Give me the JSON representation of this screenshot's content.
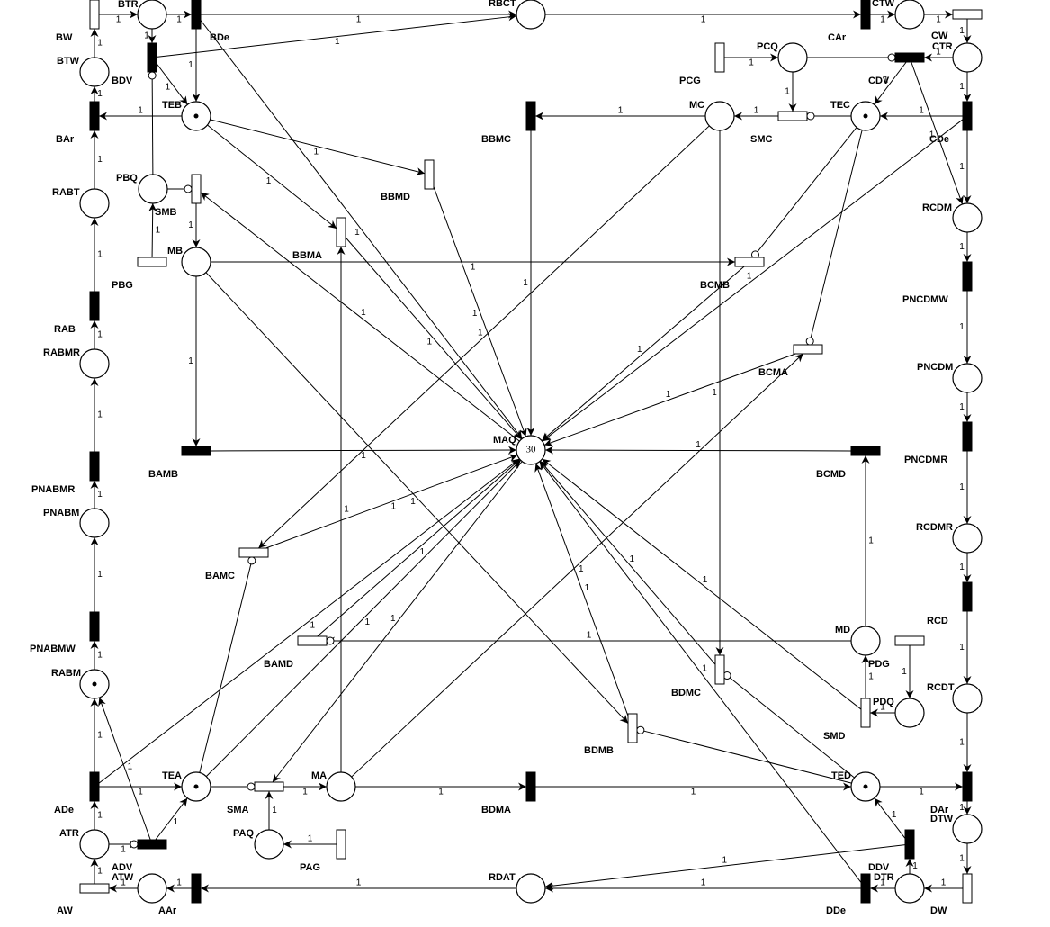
{
  "places": [
    {
      "label": "BTR"
    },
    {
      "label": "RBCT"
    },
    {
      "label": "CTW"
    },
    {
      "label": "BTW"
    },
    {
      "label": "PCQ"
    },
    {
      "label": "CTR"
    },
    {
      "label": "TEB",
      "tokens": 1
    },
    {
      "label": "MC"
    },
    {
      "label": "TEC",
      "tokens": 1
    },
    {
      "label": "RABT"
    },
    {
      "label": "PBQ"
    },
    {
      "label": "RCDM"
    },
    {
      "label": "MB"
    },
    {
      "label": "RABMR"
    },
    {
      "label": "PNCDM"
    },
    {
      "label": "MAQ",
      "tokens": 30
    },
    {
      "label": "PNABM"
    },
    {
      "label": "RCDMR"
    },
    {
      "label": "MD"
    },
    {
      "label": "RABM",
      "tokens": 1
    },
    {
      "label": "PDQ"
    },
    {
      "label": "RCDT"
    },
    {
      "label": "TEA",
      "tokens": 1
    },
    {
      "label": "MA"
    },
    {
      "label": "TED",
      "tokens": 1
    },
    {
      "label": "ATR"
    },
    {
      "label": "PAQ"
    },
    {
      "label": "DTW"
    },
    {
      "label": "ATW"
    },
    {
      "label": "RDAT"
    },
    {
      "label": "DTR"
    }
  ],
  "black_transitions": [
    {
      "label": "BDe"
    },
    {
      "label": "CAr"
    },
    {
      "label": "BDV"
    },
    {
      "label": "CDV"
    },
    {
      "label": "BAr"
    },
    {
      "label": "BBMC"
    },
    {
      "label": "CDe"
    },
    {
      "label": "RAB"
    },
    {
      "label": "PNCDMW"
    },
    {
      "label": "PNABMR"
    },
    {
      "label": "PNCDMR"
    },
    {
      "label": "BAMB"
    },
    {
      "label": "BCMD"
    },
    {
      "label": "RCD"
    },
    {
      "label": "PNABMW"
    },
    {
      "label": "ADe"
    },
    {
      "label": "BDMA"
    },
    {
      "label": "DAr"
    },
    {
      "label": "ADV"
    },
    {
      "label": "DDV"
    },
    {
      "label": "AAr"
    },
    {
      "label": "DDe"
    }
  ],
  "white_transitions": [
    {
      "label": "BW"
    },
    {
      "label": "CW"
    },
    {
      "label": "PCG"
    },
    {
      "label": "SMC"
    },
    {
      "label": "BBMD"
    },
    {
      "label": "SMB"
    },
    {
      "label": "BBMA"
    },
    {
      "label": "PBG"
    },
    {
      "label": "BCMB"
    },
    {
      "label": "BCMA"
    },
    {
      "label": "BAMC"
    },
    {
      "label": "BAMD"
    },
    {
      "label": "PDG"
    },
    {
      "label": "BDMC"
    },
    {
      "label": "SMD"
    },
    {
      "label": "BDMB"
    },
    {
      "label": "SMA"
    },
    {
      "label": "PAG"
    },
    {
      "label": "AW"
    },
    {
      "label": "DW"
    }
  ],
  "arc_weights": [
    1,
    1,
    1,
    1,
    1,
    1,
    1,
    1,
    1,
    1,
    1,
    1,
    1,
    1,
    1,
    1,
    1,
    1,
    1,
    1,
    1,
    1,
    1,
    1,
    1,
    1,
    1,
    1,
    1,
    1,
    1,
    1,
    1,
    1,
    1,
    1,
    1,
    1,
    1,
    1,
    1,
    1,
    1,
    1,
    1,
    1,
    1,
    1,
    1,
    1,
    1,
    1,
    1,
    1,
    1,
    1,
    1,
    1,
    1,
    1,
    1,
    1,
    1,
    1,
    1,
    1,
    1,
    1,
    1,
    1,
    1,
    1,
    1,
    1,
    1,
    1,
    1,
    1,
    1,
    1,
    1,
    1,
    1,
    1,
    1,
    1,
    1,
    1,
    1,
    1,
    1,
    1,
    1,
    1,
    1,
    1,
    1
  ]
}
